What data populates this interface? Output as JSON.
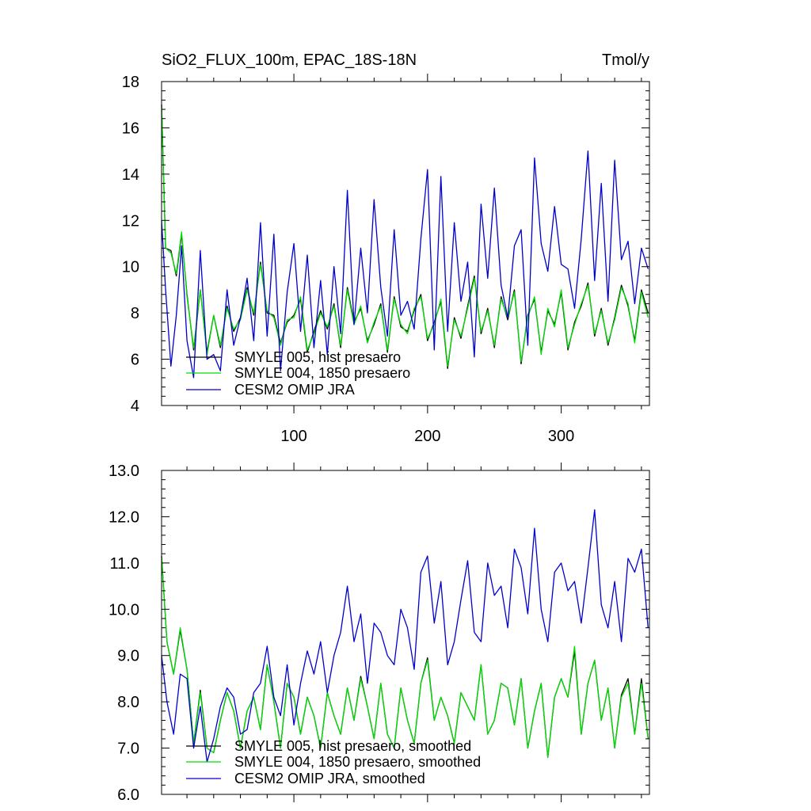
{
  "chart_data": [
    {
      "type": "line",
      "title_left": "SiO2_FLUX_100m, EPAC_18S-18N",
      "title_right": "Tmol/y",
      "xlim": [
        1,
        366
      ],
      "ylim": [
        4,
        18
      ],
      "yticks": [
        4,
        6,
        8,
        10,
        12,
        14,
        16,
        18
      ],
      "ytick_labels": [
        "4",
        "6",
        "8",
        "10",
        "12",
        "14",
        "16",
        "18"
      ],
      "xticks": [
        100,
        200,
        300
      ],
      "xtick_labels": [
        "100",
        "200",
        "300"
      ],
      "legend_position": "bottom-left",
      "series": [
        {
          "name": "SMYLE 005, hist presaero",
          "color": "#000000",
          "x": [
            1,
            4,
            8,
            12,
            16,
            20,
            25,
            30,
            35,
            40,
            45,
            50,
            55,
            60,
            65,
            70,
            75,
            80,
            85,
            90,
            95,
            100,
            105,
            110,
            115,
            120,
            125,
            130,
            135,
            140,
            145,
            150,
            155,
            160,
            165,
            170,
            175,
            180,
            185,
            190,
            195,
            200,
            205,
            210,
            215,
            220,
            225,
            230,
            235,
            240,
            245,
            250,
            255,
            260,
            265,
            270,
            275,
            280,
            285,
            290,
            295,
            300,
            305,
            310,
            315,
            320,
            325,
            330,
            335,
            340,
            345,
            350,
            355,
            360,
            365
          ],
          "values": [
            17.0,
            10.8,
            10.7,
            9.6,
            11.4,
            8.8,
            6.4,
            9.0,
            6.3,
            7.9,
            6.5,
            8.3,
            7.2,
            7.8,
            9.1,
            7.9,
            10.2,
            8.0,
            7.9,
            6.7,
            7.6,
            7.9,
            8.6,
            6.3,
            7.2,
            8.1,
            7.3,
            8.4,
            6.5,
            9.1,
            7.6,
            8.2,
            6.8,
            7.5,
            8.4,
            6.3,
            8.7,
            7.4,
            7.2,
            8.1,
            8.8,
            6.8,
            7.6,
            8.5,
            5.6,
            7.8,
            6.9,
            8.3,
            9.6,
            7.1,
            8.2,
            6.5,
            8.7,
            7.7,
            9.0,
            5.8,
            7.9,
            8.6,
            6.3,
            8.1,
            7.5,
            8.9,
            6.4,
            7.6,
            8.3,
            9.3,
            7.0,
            8.2,
            6.6,
            7.8,
            9.2,
            8.3,
            6.8,
            9.0,
            8.0
          ]
        },
        {
          "name": "SMYLE 004, 1850 presaero",
          "color": "#00dd00",
          "x": [
            1,
            4,
            8,
            12,
            16,
            20,
            25,
            30,
            35,
            40,
            45,
            50,
            55,
            60,
            65,
            70,
            75,
            80,
            85,
            90,
            95,
            100,
            105,
            110,
            115,
            120,
            125,
            130,
            135,
            140,
            145,
            150,
            155,
            160,
            165,
            170,
            175,
            180,
            185,
            190,
            195,
            200,
            205,
            210,
            215,
            220,
            225,
            230,
            235,
            240,
            245,
            250,
            255,
            260,
            265,
            270,
            275,
            280,
            285,
            290,
            295,
            300,
            305,
            310,
            315,
            320,
            325,
            330,
            335,
            340,
            345,
            350,
            355,
            360,
            365
          ],
          "values": [
            17.0,
            10.8,
            10.6,
            9.7,
            11.5,
            8.7,
            6.5,
            9.0,
            6.2,
            7.9,
            6.6,
            8.2,
            7.3,
            7.7,
            9.0,
            8.0,
            10.1,
            8.1,
            7.8,
            6.6,
            7.7,
            7.8,
            8.7,
            6.4,
            7.1,
            8.0,
            7.4,
            8.3,
            6.6,
            9.0,
            7.5,
            8.3,
            6.7,
            7.6,
            8.3,
            6.4,
            8.6,
            7.5,
            7.1,
            8.2,
            8.7,
            6.9,
            7.5,
            8.6,
            5.7,
            7.7,
            7.0,
            8.2,
            9.5,
            7.2,
            8.1,
            6.6,
            8.6,
            7.8,
            8.9,
            5.9,
            7.8,
            8.7,
            6.2,
            8.2,
            7.4,
            9.0,
            6.5,
            7.5,
            8.4,
            9.2,
            7.1,
            8.1,
            6.7,
            7.7,
            9.1,
            8.4,
            6.7,
            8.9,
            7.8
          ]
        },
        {
          "name": "CESM2 OMIP JRA",
          "color": "#0000cc",
          "x": [
            1,
            4,
            8,
            12,
            16,
            20,
            25,
            30,
            35,
            40,
            45,
            50,
            55,
            60,
            65,
            70,
            75,
            80,
            85,
            90,
            95,
            100,
            105,
            110,
            115,
            120,
            125,
            130,
            135,
            140,
            145,
            150,
            155,
            160,
            165,
            170,
            175,
            180,
            185,
            190,
            195,
            200,
            205,
            210,
            215,
            220,
            225,
            230,
            235,
            240,
            245,
            250,
            255,
            260,
            265,
            270,
            275,
            280,
            285,
            290,
            295,
            300,
            305,
            310,
            315,
            320,
            325,
            330,
            335,
            340,
            345,
            350,
            355,
            360,
            365
          ],
          "values": [
            12.0,
            9.0,
            5.7,
            7.9,
            10.9,
            6.8,
            5.2,
            10.7,
            6.0,
            6.2,
            5.5,
            9.0,
            6.6,
            7.8,
            9.5,
            6.8,
            11.9,
            7.0,
            11.4,
            5.5,
            8.9,
            11.0,
            7.2,
            10.5,
            6.5,
            9.4,
            6.2,
            10.0,
            7.1,
            13.3,
            7.5,
            10.8,
            8.0,
            12.9,
            9.1,
            7.0,
            11.6,
            7.9,
            8.5,
            7.3,
            11.2,
            14.2,
            6.4,
            13.9,
            7.2,
            11.9,
            8.5,
            10.2,
            6.1,
            12.7,
            9.5,
            13.4,
            9.2,
            7.8,
            10.9,
            11.6,
            6.6,
            14.7,
            11.0,
            9.8,
            12.6,
            10.1,
            9.9,
            8.2,
            11.2,
            15.0,
            9.4,
            13.6,
            8.5,
            14.6,
            10.3,
            11.1,
            8.4,
            10.8,
            9.9
          ]
        }
      ]
    },
    {
      "type": "line",
      "xlim": [
        1,
        366
      ],
      "ylim": [
        6.0,
        13.0
      ],
      "yticks": [
        6.0,
        7.0,
        8.0,
        9.0,
        10.0,
        11.0,
        12.0,
        13.0
      ],
      "ytick_labels": [
        "6.0",
        "7.0",
        "8.0",
        "9.0",
        "10.0",
        "11.0",
        "12.0",
        "13.0"
      ],
      "xticks": [
        100,
        200,
        300
      ],
      "legend_position": "bottom-left",
      "series": [
        {
          "name": "SMYLE 005, hist presaero, smoothed",
          "color": "#000000",
          "x": [
            1,
            5,
            10,
            15,
            20,
            25,
            30,
            35,
            40,
            45,
            50,
            55,
            60,
            65,
            70,
            75,
            80,
            85,
            90,
            95,
            100,
            105,
            110,
            115,
            120,
            125,
            130,
            135,
            140,
            145,
            150,
            155,
            160,
            165,
            170,
            175,
            180,
            185,
            190,
            195,
            200,
            205,
            210,
            215,
            220,
            225,
            230,
            235,
            240,
            245,
            250,
            255,
            260,
            265,
            270,
            275,
            280,
            285,
            290,
            295,
            300,
            305,
            310,
            315,
            320,
            325,
            330,
            335,
            340,
            345,
            350,
            355,
            360,
            365
          ],
          "values": [
            11.15,
            9.3,
            8.6,
            9.55,
            8.7,
            7.1,
            8.25,
            7.0,
            6.9,
            7.6,
            8.2,
            7.8,
            7.0,
            7.8,
            8.1,
            7.4,
            8.8,
            8.0,
            7.0,
            8.4,
            8.1,
            7.3,
            8.1,
            7.7,
            7.0,
            8.2,
            7.7,
            7.3,
            8.3,
            7.6,
            8.55,
            7.9,
            7.2,
            8.4,
            7.3,
            7.0,
            8.3,
            7.6,
            7.1,
            8.4,
            8.95,
            7.6,
            8.1,
            7.7,
            7.1,
            8.2,
            7.9,
            7.6,
            8.8,
            7.3,
            7.6,
            8.4,
            8.3,
            7.5,
            8.5,
            7.0,
            7.8,
            8.4,
            6.8,
            8.1,
            8.5,
            8.1,
            9.1,
            7.3,
            8.4,
            8.9,
            7.6,
            8.3,
            7.0,
            8.15,
            8.5,
            7.3,
            8.5,
            7.2
          ]
        },
        {
          "name": "SMYLE 004, 1850 presaero, smoothed",
          "color": "#00dd00",
          "x": [
            1,
            5,
            10,
            15,
            20,
            25,
            30,
            35,
            40,
            45,
            50,
            55,
            60,
            65,
            70,
            75,
            80,
            85,
            90,
            95,
            100,
            105,
            110,
            115,
            120,
            125,
            130,
            135,
            140,
            145,
            150,
            155,
            160,
            165,
            170,
            175,
            180,
            185,
            190,
            195,
            200,
            205,
            210,
            215,
            220,
            225,
            230,
            235,
            240,
            245,
            250,
            255,
            260,
            265,
            270,
            275,
            280,
            285,
            290,
            295,
            300,
            305,
            310,
            315,
            320,
            325,
            330,
            335,
            340,
            345,
            350,
            355,
            360,
            365
          ],
          "values": [
            11.15,
            9.3,
            8.6,
            9.6,
            8.7,
            7.1,
            8.2,
            7.0,
            6.9,
            7.6,
            8.2,
            7.8,
            7.0,
            7.8,
            8.1,
            7.4,
            8.8,
            8.0,
            7.0,
            8.4,
            8.1,
            7.3,
            8.1,
            7.7,
            7.0,
            8.2,
            7.7,
            7.3,
            8.3,
            7.6,
            8.5,
            7.9,
            7.2,
            8.4,
            7.3,
            7.0,
            8.3,
            7.6,
            7.1,
            8.4,
            8.9,
            7.6,
            8.1,
            7.7,
            7.1,
            8.2,
            7.9,
            7.6,
            8.8,
            7.3,
            7.6,
            8.4,
            8.3,
            7.5,
            8.5,
            7.0,
            7.8,
            8.4,
            6.8,
            8.1,
            8.5,
            8.1,
            9.2,
            7.3,
            8.4,
            8.9,
            7.6,
            8.3,
            7.0,
            8.1,
            8.4,
            7.3,
            8.4,
            7.2
          ]
        },
        {
          "name": "CESM2 OMIP JRA, smoothed",
          "color": "#0000cc",
          "x": [
            1,
            5,
            10,
            15,
            20,
            25,
            30,
            35,
            40,
            45,
            50,
            55,
            60,
            65,
            70,
            75,
            80,
            85,
            90,
            95,
            100,
            105,
            110,
            115,
            120,
            125,
            130,
            135,
            140,
            145,
            150,
            155,
            160,
            165,
            170,
            175,
            180,
            185,
            190,
            195,
            200,
            205,
            210,
            215,
            220,
            225,
            230,
            235,
            240,
            245,
            250,
            255,
            260,
            265,
            270,
            275,
            280,
            285,
            290,
            295,
            300,
            305,
            310,
            315,
            320,
            325,
            330,
            335,
            340,
            345,
            350,
            355,
            360,
            365
          ],
          "values": [
            9.0,
            8.0,
            7.3,
            8.6,
            8.5,
            7.0,
            7.9,
            6.7,
            7.2,
            7.9,
            8.3,
            8.1,
            7.3,
            7.4,
            8.2,
            8.4,
            9.2,
            8.1,
            7.7,
            8.8,
            7.5,
            8.4,
            9.1,
            8.6,
            9.3,
            8.2,
            9.0,
            9.5,
            10.5,
            9.3,
            9.9,
            8.4,
            9.7,
            9.5,
            9.0,
            8.8,
            10.0,
            9.6,
            8.7,
            10.8,
            11.15,
            9.7,
            10.6,
            8.8,
            9.3,
            10.2,
            11.05,
            9.5,
            9.3,
            11.0,
            10.3,
            10.5,
            9.6,
            11.3,
            10.9,
            9.9,
            11.75,
            10.0,
            9.3,
            10.8,
            11.0,
            10.4,
            10.6,
            9.7,
            10.9,
            12.15,
            10.1,
            9.6,
            10.6,
            9.3,
            11.1,
            10.8,
            11.3,
            9.6
          ]
        }
      ]
    }
  ]
}
